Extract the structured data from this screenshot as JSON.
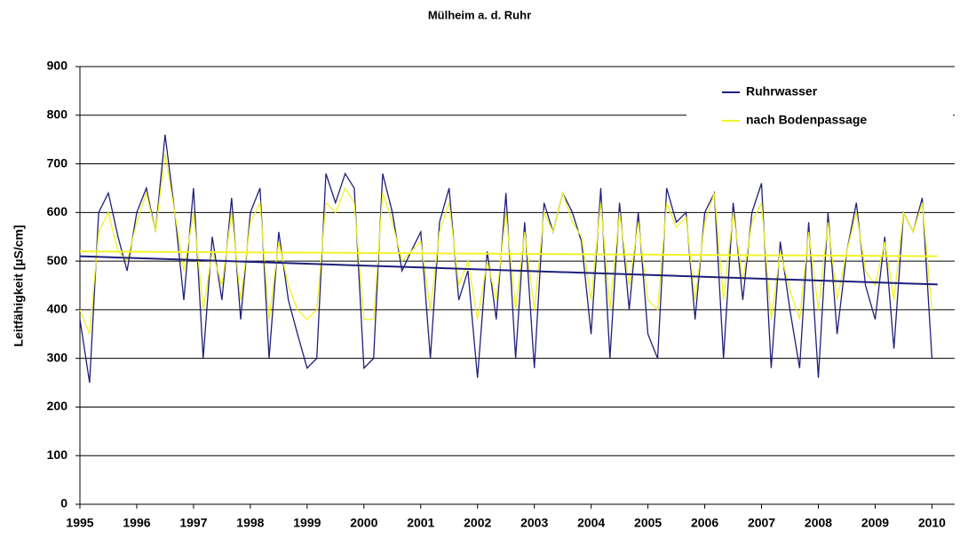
{
  "chart_data": {
    "type": "line",
    "title": "Mülheim a. d. Ruhr",
    "y_label": "Leitfähigkeit [µS/cm]",
    "xlim": [
      1995,
      2010.4
    ],
    "xticks": [
      1995,
      1996,
      1997,
      1998,
      1999,
      2000,
      2001,
      2002,
      2003,
      2004,
      2005,
      2006,
      2007,
      2008,
      2009,
      2010
    ],
    "ylim": [
      0,
      900
    ],
    "yticks": [
      0,
      100,
      200,
      300,
      400,
      500,
      600,
      700,
      800,
      900
    ],
    "grid": true,
    "legend": "upper right",
    "x": [
      1995,
      1995.17,
      1995.33,
      1995.5,
      1995.67,
      1995.83,
      1996,
      1996.17,
      1996.33,
      1996.5,
      1996.67,
      1996.83,
      1997,
      1997.17,
      1997.33,
      1997.5,
      1997.67,
      1997.83,
      1998,
      1998.17,
      1998.33,
      1998.5,
      1998.67,
      1998.83,
      1999,
      1999.17,
      1999.33,
      1999.5,
      1999.67,
      1999.83,
      2000,
      2000.17,
      2000.33,
      2000.5,
      2000.67,
      2000.83,
      2001,
      2001.17,
      2001.33,
      2001.5,
      2001.67,
      2001.83,
      2002,
      2002.17,
      2002.33,
      2002.5,
      2002.67,
      2002.83,
      2003,
      2003.17,
      2003.33,
      2003.5,
      2003.67,
      2003.83,
      2004,
      2004.17,
      2004.33,
      2004.5,
      2004.67,
      2004.83,
      2005,
      2005.17,
      2005.33,
      2005.5,
      2005.67,
      2005.83,
      2006,
      2006.17,
      2006.33,
      2006.5,
      2006.67,
      2006.83,
      2007,
      2007.17,
      2007.33,
      2007.5,
      2007.67,
      2007.83,
      2008,
      2008.17,
      2008.33,
      2008.5,
      2008.67,
      2008.83,
      2009,
      2009.17,
      2009.33,
      2009.5,
      2009.67,
      2009.83,
      2010
    ],
    "series": [
      {
        "name": "Ruhrwasser",
        "color": "#1f1f7a",
        "values": [
          380,
          250,
          600,
          640,
          550,
          480,
          600,
          650,
          560,
          760,
          600,
          420,
          650,
          300,
          550,
          420,
          630,
          380,
          600,
          650,
          300,
          560,
          420,
          350,
          280,
          300,
          680,
          620,
          680,
          650,
          280,
          300,
          680,
          600,
          480,
          520,
          560,
          300,
          580,
          650,
          420,
          480,
          260,
          520,
          380,
          640,
          300,
          580,
          280,
          620,
          560,
          640,
          600,
          540,
          350,
          650,
          300,
          620,
          400,
          600,
          350,
          300,
          650,
          580,
          600,
          380,
          600,
          640,
          300,
          620,
          420,
          600,
          660,
          280,
          540,
          400,
          280,
          580,
          260,
          600,
          350,
          520,
          620,
          450,
          380,
          550,
          320,
          600,
          560,
          630,
          300
        ],
        "trend_x": [
          1995,
          2010.1
        ],
        "trend_values": [
          510,
          452
        ]
      },
      {
        "name": "nach Bodenpassage",
        "color": "#f2f229",
        "values": [
          400,
          350,
          560,
          600,
          520,
          500,
          580,
          640,
          560,
          720,
          600,
          480,
          600,
          400,
          520,
          450,
          600,
          420,
          580,
          620,
          380,
          540,
          450,
          400,
          380,
          400,
          620,
          600,
          650,
          620,
          380,
          380,
          640,
          580,
          500,
          520,
          540,
          400,
          560,
          620,
          450,
          500,
          380,
          500,
          420,
          600,
          400,
          560,
          400,
          600,
          560,
          640,
          580,
          550,
          420,
          620,
          400,
          600,
          450,
          580,
          420,
          400,
          620,
          570,
          590,
          420,
          580,
          640,
          420,
          600,
          460,
          580,
          620,
          380,
          520,
          440,
          380,
          560,
          400,
          580,
          420,
          520,
          600,
          480,
          450,
          540,
          420,
          600,
          560,
          620,
          400
        ],
        "trend_x": [
          1995,
          2010.1
        ],
        "trend_values": [
          520,
          510
        ]
      }
    ]
  }
}
